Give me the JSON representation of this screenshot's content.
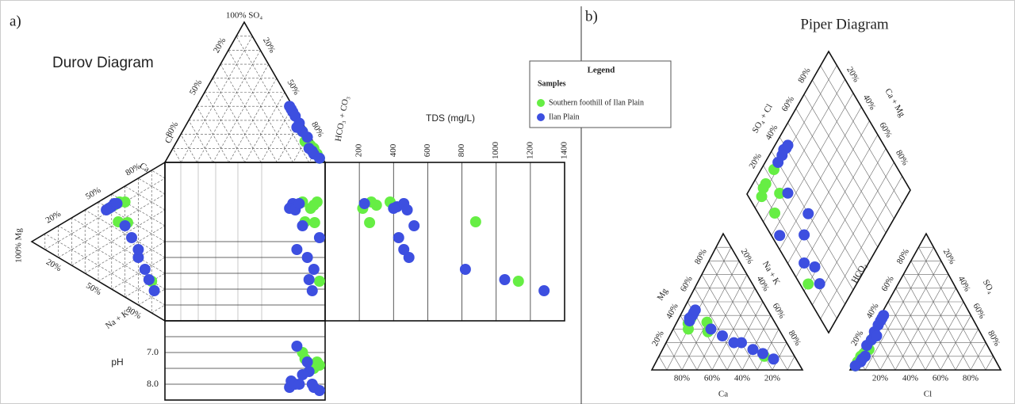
{
  "chart_data": {
    "type": "ternary",
    "durov": {
      "panel_label": "a)",
      "title": "Durov Diagram",
      "so4_label": "100% SO₄",
      "cl_label": "Cl",
      "hco3_label": "HCO₃ + CO₃",
      "ca_label": "Ca",
      "na_label": "Na + K",
      "mg_label": "100% Mg",
      "edge_ticks": [
        "20%",
        "50%",
        "80%"
      ],
      "tds_label": "TDS (mg/L)",
      "xlim": [
        0,
        1400
      ],
      "xticks": [
        200,
        400,
        600,
        800,
        1000,
        1200,
        1400
      ],
      "ph_label": "pH",
      "ylim": [
        6.0,
        8.5
      ],
      "yticks": [
        {
          "value": 7.0,
          "label": "7.0"
        },
        {
          "value": 8.0,
          "label": "8.0"
        }
      ]
    },
    "piper": {
      "panel_label": "b)",
      "title": "Piper Diagram",
      "edge_ticks": [
        "20%",
        "40%",
        "60%",
        "80%"
      ],
      "ca_label": "Ca",
      "mg_label": "Mg",
      "nak_label": "Na + K",
      "hco3_label": "HCO₃",
      "so4_label": "SO₄",
      "cl_label": "Cl",
      "so4cl_label": "SO₄ + Cl",
      "camg_label": "Ca + Mg"
    },
    "legend": {
      "title": "Legend",
      "subtitle": "Samples"
    },
    "series": [
      {
        "name": "Southern foothill of Ilan Plain",
        "color": "#66ee44",
        "ca": [
          50,
          54,
          60,
          45,
          48,
          20,
          58
        ],
        "mg": [
          42,
          38,
          30,
          35,
          28,
          10,
          34
        ],
        "na": [
          8,
          8,
          10,
          20,
          24,
          70,
          8
        ],
        "hco3": [
          85,
          88,
          92,
          80,
          90,
          95,
          75
        ],
        "so4": [
          12,
          10,
          6,
          15,
          7,
          3,
          22
        ],
        "cl": [
          3,
          2,
          2,
          5,
          3,
          2,
          3
        ],
        "tds": [
          220,
          300,
          270,
          880,
          260,
          1130,
          380
        ],
        "ph": [
          7.4,
          7.5,
          7.3,
          7.2,
          7.4,
          7.4,
          7.0
        ]
      },
      {
        "name": "Ilan Plain",
        "color": "#3d4fe0",
        "ca": [
          52,
          55,
          50,
          48,
          30,
          20,
          15,
          25,
          45,
          40,
          56,
          35
        ],
        "mg": [
          40,
          38,
          42,
          44,
          20,
          12,
          8,
          15,
          30,
          25,
          36,
          20
        ],
        "na": [
          8,
          7,
          8,
          8,
          50,
          68,
          77,
          60,
          25,
          35,
          8,
          45
        ],
        "hco3": [
          60,
          62,
          58,
          65,
          80,
          85,
          88,
          90,
          75,
          95,
          70,
          70
        ],
        "so4": [
          38,
          36,
          40,
          33,
          18,
          10,
          8,
          6,
          22,
          3,
          28,
          25
        ],
        "cl": [
          2,
          2,
          2,
          2,
          2,
          5,
          4,
          4,
          3,
          2,
          2,
          5
        ],
        "tds": [
          420,
          460,
          400,
          480,
          490,
          1050,
          1280,
          820,
          520,
          430,
          230,
          460
        ],
        "ph": [
          7.9,
          8.0,
          8.1,
          8.0,
          7.3,
          7.6,
          8.0,
          8.1,
          7.7,
          8.2,
          8.0,
          6.8
        ]
      }
    ]
  }
}
